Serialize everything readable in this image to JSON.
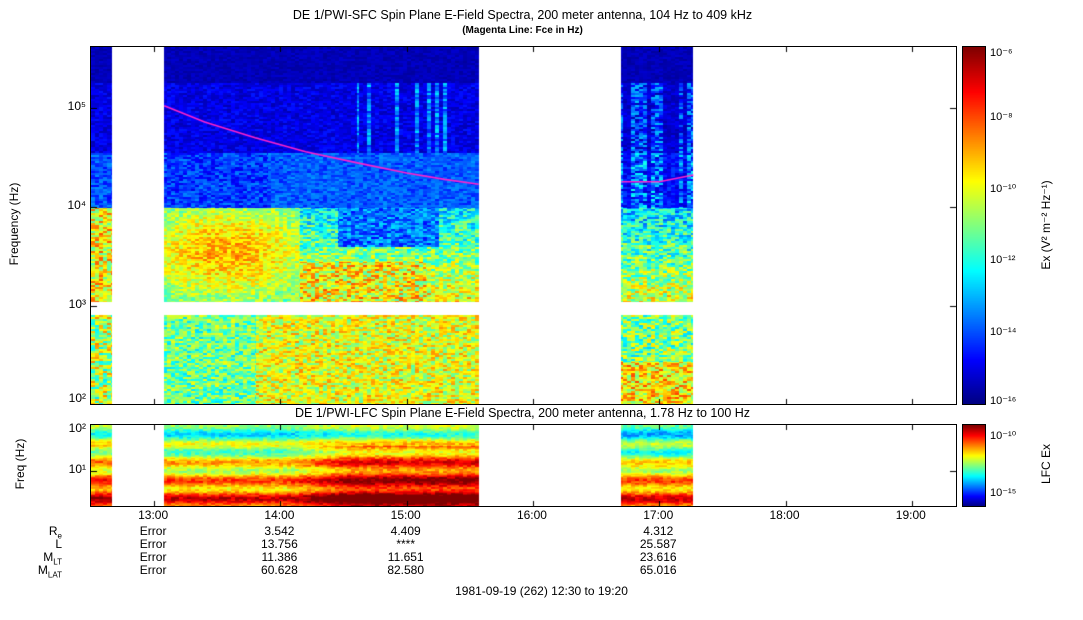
{
  "figure": {
    "footer": "1981-09-19 (262) 12:30 to 19:20"
  },
  "chart_data": [
    {
      "type": "heatmap",
      "instrument": "DE 1/PWI-SFC",
      "title": "DE 1/PWI-SFC  Spin Plane E-Field Spectra, 200 meter antenna, 104 Hz to 409 kHz",
      "subtitle": "(Magenta Line: Fce in Hz)",
      "ylabel": "Frequency (Hz)",
      "y_scale": "log",
      "freq_range_hz": [
        104,
        409000
      ],
      "y_ticks": [
        {
          "label": "10⁵",
          "hz": 100000
        },
        {
          "label": "10⁴",
          "hz": 10000
        },
        {
          "label": "10³",
          "hz": 1000
        },
        {
          "label": "10²",
          "hz": 100
        }
      ],
      "colorbar": {
        "label": "Ex (V² m⁻² Hz⁻¹)",
        "scale": "log",
        "range_exp": [
          -6,
          -16
        ],
        "ticks": [
          {
            "label": "10⁻⁶",
            "exp": -6
          },
          {
            "label": "10⁻⁸",
            "exp": -8
          },
          {
            "label": "10⁻¹⁰",
            "exp": -10
          },
          {
            "label": "10⁻¹²",
            "exp": -12
          },
          {
            "label": "10⁻¹⁴",
            "exp": -14
          },
          {
            "label": "10⁻¹⁶",
            "exp": -16
          }
        ]
      },
      "data_segments_hours": [
        [
          12.5,
          12.67
        ],
        [
          13.08,
          15.57
        ],
        [
          16.7,
          17.27
        ]
      ],
      "gap_band_log10hz": [
        2.92,
        3.05
      ],
      "fce_line": {
        "label": "Fce",
        "color": "#ff22cc",
        "points": [
          [
            13.08,
            105000
          ],
          [
            13.4,
            72000
          ],
          [
            13.8,
            50000
          ],
          [
            14.2,
            36000
          ],
          [
            14.6,
            28000
          ],
          [
            15.0,
            22000
          ],
          [
            15.3,
            19000
          ],
          [
            15.57,
            17000
          ],
          [
            16.7,
            18000
          ],
          [
            17.0,
            18000
          ],
          [
            17.27,
            21000
          ]
        ]
      }
    },
    {
      "type": "heatmap",
      "instrument": "DE 1/PWI-LFC",
      "title": "DE 1/PWI-LFC  Spin Plane E-Field Spectra, 200 meter antenna, 1.78 Hz to 100 Hz",
      "ylabel": "Freq (Hz)",
      "y_scale": "log",
      "freq_range_hz": [
        1.78,
        100
      ],
      "y_ticks": [
        {
          "label": "10²",
          "hz": 100
        },
        {
          "label": "10¹",
          "hz": 10
        }
      ],
      "colorbar": {
        "label": "LFC Ex",
        "scale": "log",
        "range_exp": [
          -9,
          -16
        ],
        "ticks": [
          {
            "label": "10⁻¹⁰",
            "exp": -10
          },
          {
            "label": "10⁻¹⁵",
            "exp": -15
          }
        ]
      },
      "data_segments_hours": [
        [
          12.5,
          12.67
        ],
        [
          13.08,
          15.57
        ],
        [
          16.7,
          17.27
        ]
      ]
    }
  ],
  "x_axis": {
    "start_hour": 12.5,
    "end_hour": 19.35,
    "ticks": [
      {
        "label": "13:00",
        "hour": 13
      },
      {
        "label": "14:00",
        "hour": 14
      },
      {
        "label": "15:00",
        "hour": 15
      },
      {
        "label": "16:00",
        "hour": 16
      },
      {
        "label": "17:00",
        "hour": 17
      },
      {
        "label": "18:00",
        "hour": 18
      },
      {
        "label": "19:00",
        "hour": 19
      }
    ]
  },
  "ephemeris": {
    "column_hours": [
      13,
      14,
      15,
      17
    ],
    "rows": [
      {
        "label": {
          "main": "R",
          "sub": "e"
        },
        "values": [
          "Error",
          "3.542",
          "4.409",
          "4.312"
        ]
      },
      {
        "label": {
          "main": "L",
          "sub": ""
        },
        "values": [
          "Error",
          "13.756",
          "****",
          "25.587"
        ]
      },
      {
        "label": {
          "main": "M",
          "sub": "LT"
        },
        "values": [
          "Error",
          "11.386",
          "11.651",
          "23.616"
        ]
      },
      {
        "label": {
          "main": "M",
          "sub": "LAT"
        },
        "values": [
          "Error",
          "60.628",
          "82.580",
          "65.016"
        ]
      }
    ]
  }
}
